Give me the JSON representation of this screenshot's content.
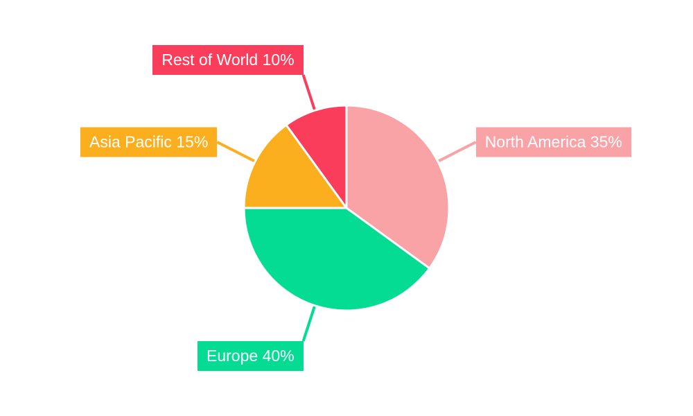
{
  "page": {
    "background": "#ffffff",
    "text_color": "#ffffff"
  },
  "chart_data": {
    "type": "pie",
    "title": "",
    "direction": "clockwise",
    "start_angle_deg": 0,
    "unit": "%",
    "legend_position": "none",
    "label_style": "callout-boxes-with-leader-lines",
    "slices": [
      {
        "label": "North America",
        "value": 35,
        "color": "#F9A3A7",
        "callout_text": "North America 35%"
      },
      {
        "label": "Europe",
        "value": 40,
        "color": "#05DC93",
        "callout_text": "Europe 40%"
      },
      {
        "label": "Asia Pacific",
        "value": 15,
        "color": "#FBAF1E",
        "callout_text": "Asia Pacific 15%"
      },
      {
        "label": "Rest of World",
        "value": 10,
        "color": "#FB3D5C",
        "callout_text": "Rest of World 10%"
      }
    ],
    "slice_border_color": "#FFFFFF"
  }
}
